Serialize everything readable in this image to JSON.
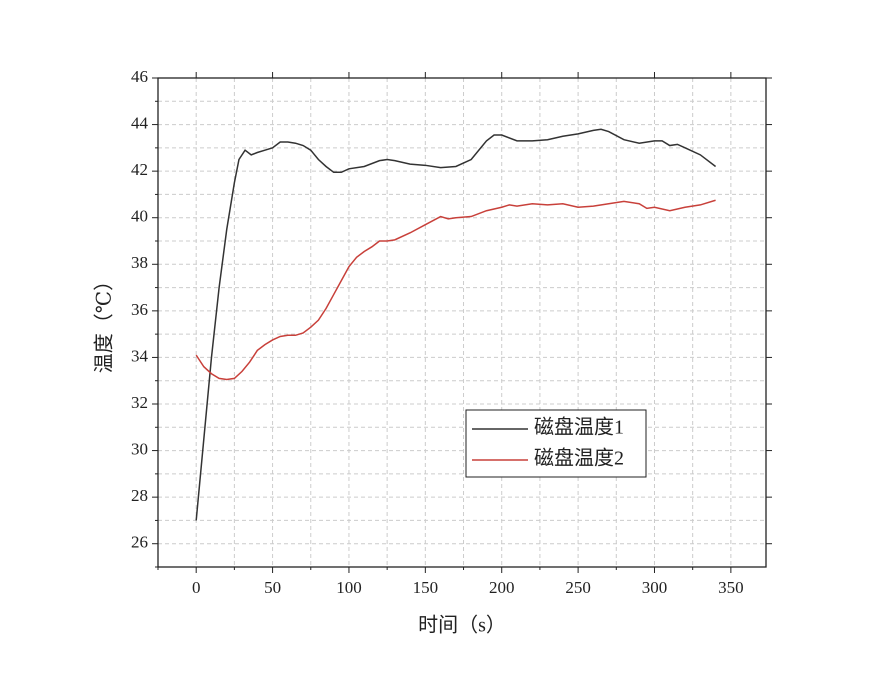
{
  "chart_data": {
    "type": "line",
    "xlabel": "时间（s）",
    "ylabel": "温度（℃）",
    "xlim": [
      -25,
      373
    ],
    "ylim": [
      25,
      46
    ],
    "xticks": [
      0,
      50,
      100,
      150,
      200,
      250,
      300,
      350
    ],
    "yticks": [
      26,
      28,
      30,
      32,
      34,
      36,
      38,
      40,
      42,
      44,
      46
    ],
    "xminorticks": [
      -25,
      25,
      75,
      125,
      175,
      225,
      275,
      325
    ],
    "yminorticks": [
      25,
      27,
      29,
      31,
      33,
      35,
      37,
      39,
      41,
      43,
      45
    ],
    "grid": true,
    "legend_position": "lower right",
    "series": [
      {
        "name": "磁盘温度1",
        "color": "#333333",
        "x": [
          0,
          5,
          10,
          15,
          20,
          25,
          28,
          32,
          36,
          40,
          45,
          50,
          55,
          60,
          65,
          70,
          75,
          80,
          85,
          90,
          95,
          100,
          110,
          120,
          125,
          130,
          140,
          150,
          160,
          170,
          180,
          190,
          195,
          200,
          210,
          220,
          230,
          240,
          250,
          260,
          265,
          270,
          280,
          290,
          300,
          305,
          310,
          315,
          320,
          330,
          340
        ],
        "values": [
          27.0,
          30.5,
          34.0,
          37.0,
          39.5,
          41.5,
          42.5,
          42.9,
          42.7,
          42.8,
          42.9,
          43.0,
          43.25,
          43.25,
          43.2,
          43.1,
          42.9,
          42.5,
          42.2,
          41.95,
          41.95,
          42.1,
          42.2,
          42.45,
          42.5,
          42.45,
          42.3,
          42.25,
          42.15,
          42.2,
          42.5,
          43.3,
          43.55,
          43.55,
          43.3,
          43.3,
          43.35,
          43.5,
          43.6,
          43.75,
          43.8,
          43.7,
          43.35,
          43.2,
          43.3,
          43.3,
          43.1,
          43.15,
          43.0,
          42.7,
          42.2
        ]
      },
      {
        "name": "磁盘温度2",
        "color": "#c8403a",
        "x": [
          0,
          5,
          10,
          15,
          20,
          25,
          30,
          35,
          40,
          45,
          50,
          55,
          60,
          65,
          70,
          75,
          80,
          85,
          90,
          95,
          100,
          105,
          110,
          115,
          120,
          125,
          130,
          140,
          150,
          160,
          165,
          170,
          180,
          190,
          200,
          205,
          210,
          220,
          230,
          240,
          250,
          260,
          270,
          280,
          290,
          295,
          300,
          310,
          320,
          330,
          340
        ],
        "values": [
          34.1,
          33.6,
          33.3,
          33.1,
          33.05,
          33.1,
          33.4,
          33.8,
          34.3,
          34.55,
          34.75,
          34.9,
          34.95,
          34.95,
          35.05,
          35.3,
          35.6,
          36.1,
          36.7,
          37.3,
          37.9,
          38.3,
          38.55,
          38.75,
          39.0,
          39.0,
          39.05,
          39.35,
          39.7,
          40.05,
          39.95,
          40.0,
          40.05,
          40.3,
          40.45,
          40.55,
          40.5,
          40.6,
          40.55,
          40.6,
          40.45,
          40.5,
          40.6,
          40.7,
          40.6,
          40.4,
          40.45,
          40.3,
          40.45,
          40.55,
          40.75
        ]
      }
    ]
  }
}
